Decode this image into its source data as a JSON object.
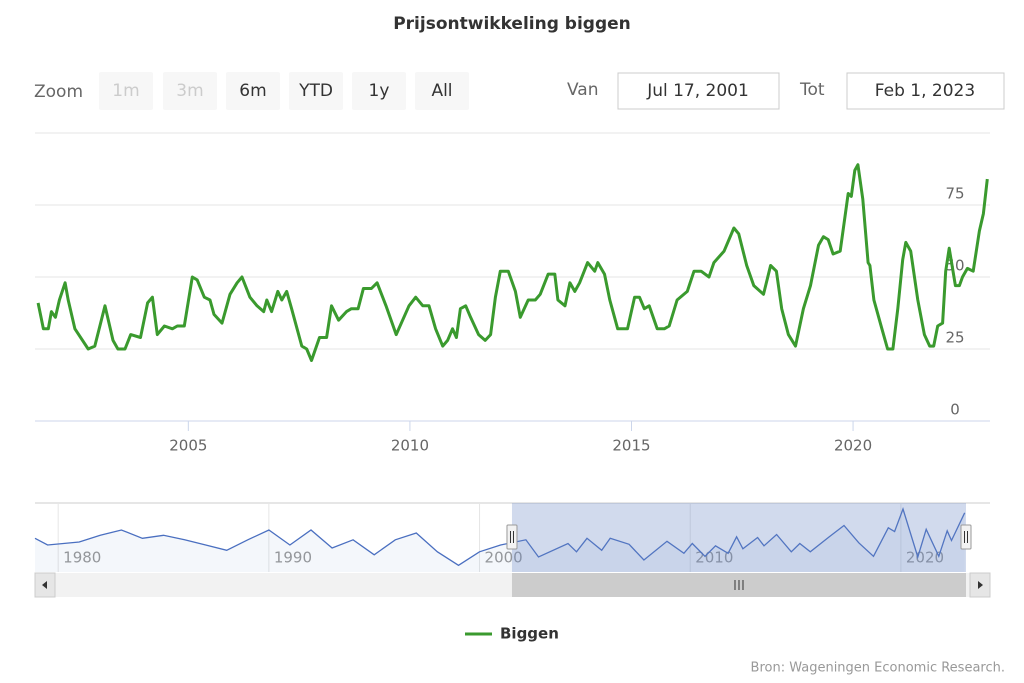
{
  "range_selector": {
    "zoom_label": "Zoom",
    "buttons": [
      {
        "label": "1m",
        "enabled": false
      },
      {
        "label": "3m",
        "enabled": false
      },
      {
        "label": "6m",
        "enabled": true
      },
      {
        "label": "YTD",
        "enabled": true
      },
      {
        "label": "1y",
        "enabled": true
      },
      {
        "label": "All",
        "enabled": true
      }
    ],
    "from_label": "Van",
    "from": "Jul 17, 2001",
    "to_label": "Tot",
    "to": "Feb 1, 2023"
  },
  "chart_data": {
    "type": "line",
    "title": "Prijsontwikkeling biggen",
    "x": [
      2001.61,
      2001.73,
      2001.84,
      2001.91,
      2002.0,
      2002.09,
      2002.22,
      2002.29,
      2002.44,
      2002.74,
      2002.89,
      2003.12,
      2003.3,
      2003.41,
      2003.57,
      2003.7,
      2003.92,
      2004.08,
      2004.19,
      2004.3,
      2004.46,
      2004.64,
      2004.75,
      2004.91,
      2005.09,
      2005.2,
      2005.36,
      2005.49,
      2005.58,
      2005.76,
      2005.94,
      2006.1,
      2006.21,
      2006.39,
      2006.55,
      2006.7,
      2006.77,
      2006.88,
      2007.02,
      2007.11,
      2007.22,
      2007.33,
      2007.56,
      2007.67,
      2007.78,
      2007.96,
      2008.12,
      2008.23,
      2008.39,
      2008.57,
      2008.68,
      2008.83,
      2008.95,
      2009.13,
      2009.26,
      2009.46,
      2009.69,
      2009.98,
      2010.13,
      2010.29,
      2010.43,
      2010.58,
      2010.74,
      2010.85,
      2010.96,
      2011.05,
      2011.14,
      2011.26,
      2011.37,
      2011.55,
      2011.7,
      2011.82,
      2011.93,
      2012.04,
      2012.22,
      2012.38,
      2012.49,
      2012.67,
      2012.83,
      2012.94,
      2013.12,
      2013.27,
      2013.34,
      2013.5,
      2013.61,
      2013.72,
      2013.83,
      2014.01,
      2014.17,
      2014.24,
      2014.39,
      2014.51,
      2014.69,
      2014.91,
      2015.07,
      2015.18,
      2015.29,
      2015.4,
      2015.58,
      2015.74,
      2015.85,
      2016.03,
      2016.26,
      2016.41,
      2016.57,
      2016.75,
      2016.86,
      2017.09,
      2017.31,
      2017.42,
      2017.6,
      2017.76,
      2017.98,
      2018.14,
      2018.27,
      2018.39,
      2018.54,
      2018.7,
      2018.88,
      2019.04,
      2019.22,
      2019.33,
      2019.44,
      2019.55,
      2019.71,
      2019.89,
      2019.96,
      2020.04,
      2020.11,
      2020.22,
      2020.34,
      2020.38,
      2020.47,
      2020.65,
      2020.78,
      2020.9,
      2021.01,
      2021.12,
      2021.19,
      2021.3,
      2021.46,
      2021.61,
      2021.73,
      2021.82,
      2021.91,
      2022.02,
      2022.09,
      2022.17,
      2022.31,
      2022.4,
      2022.47,
      2022.58,
      2022.71,
      2022.85,
      2022.94,
      2023.03
    ],
    "series": [
      {
        "name": "Biggen",
        "color": "#3a9a2e",
        "values": [
          41,
          32,
          32,
          38,
          36,
          42,
          48,
          42,
          32,
          25,
          26,
          40,
          28,
          25,
          25,
          30,
          29,
          41,
          43,
          30,
          33,
          32,
          33,
          33,
          50,
          49,
          43,
          42,
          37,
          34,
          44,
          48,
          50,
          43,
          40,
          38,
          42,
          38,
          45,
          42,
          45,
          39,
          26,
          25,
          21,
          29,
          29,
          40,
          35,
          38,
          39,
          39,
          46,
          46,
          48,
          40,
          30,
          40,
          43,
          40,
          40,
          32,
          26,
          28,
          32,
          29,
          39,
          40,
          36,
          30,
          28,
          30,
          43,
          52,
          52,
          45,
          36,
          42,
          42,
          44,
          51,
          51,
          42,
          40,
          48,
          45,
          48,
          55,
          52,
          55,
          51,
          42,
          32,
          32,
          43,
          43,
          39,
          40,
          32,
          32,
          33,
          42,
          45,
          52,
          52,
          50,
          55,
          59,
          67,
          65,
          54,
          47,
          44,
          54,
          52,
          39,
          30,
          26,
          39,
          47,
          61,
          64,
          63,
          58,
          59,
          79,
          78,
          87,
          89,
          77,
          55,
          54,
          42,
          32,
          25,
          25,
          39,
          56,
          62,
          59,
          42,
          30,
          26,
          26,
          33,
          34,
          52,
          60,
          47,
          47,
          50,
          53,
          52,
          66,
          72,
          84
        ]
      }
    ],
    "xlim": [
      2001.54,
      2023.09
    ],
    "xticks": [
      2005,
      2010,
      2015,
      2020
    ],
    "ylim": [
      0,
      100
    ],
    "yticks": [
      0,
      25,
      50,
      75
    ],
    "grid": true,
    "legend": "bottom"
  },
  "navigator": {
    "type": "line",
    "color": "#4a6fc0",
    "x": [
      1978.9,
      1979.5,
      1981,
      1982,
      1983,
      1984,
      1985,
      1986,
      1987,
      1988,
      1989,
      1990,
      1991,
      1992,
      1993,
      1994,
      1995,
      1996,
      1997,
      1998,
      1999,
      2000,
      2001,
      2002.2,
      2002.8,
      2004.2,
      2004.6,
      2005.1,
      2005.8,
      2006.2,
      2007.1,
      2007.8,
      2008.9,
      2009.7,
      2010.1,
      2010.7,
      2011.2,
      2011.8,
      2012.2,
      2012.5,
      2013.2,
      2013.5,
      2014.1,
      2014.8,
      2015.2,
      2015.7,
      2016.6,
      2017.3,
      2018,
      2018.7,
      2019.4,
      2019.7,
      2020.1,
      2020.8,
      2021.2,
      2021.8,
      2022.2,
      2022.4,
      2023.03
    ],
    "values": [
      50,
      41,
      45,
      54,
      61,
      50,
      54,
      48,
      41,
      34,
      48,
      61,
      41,
      61,
      37,
      48,
      28,
      48,
      57,
      32,
      14,
      32,
      41,
      48,
      25,
      43,
      32,
      50,
      34,
      50,
      42,
      21,
      46,
      30,
      43,
      26,
      40,
      30,
      52,
      36,
      51,
      40,
      55,
      32,
      43,
      32,
      52,
      67,
      44,
      26,
      64,
      59,
      89,
      25,
      62,
      26,
      60,
      47,
      84
    ],
    "xlim": [
      1978.9,
      2023.09
    ],
    "ylim": [
      5,
      97
    ],
    "xticks": [
      1980,
      1990,
      2000,
      2010,
      2020
    ]
  },
  "credits": "Bron: Wageningen Economic Research."
}
